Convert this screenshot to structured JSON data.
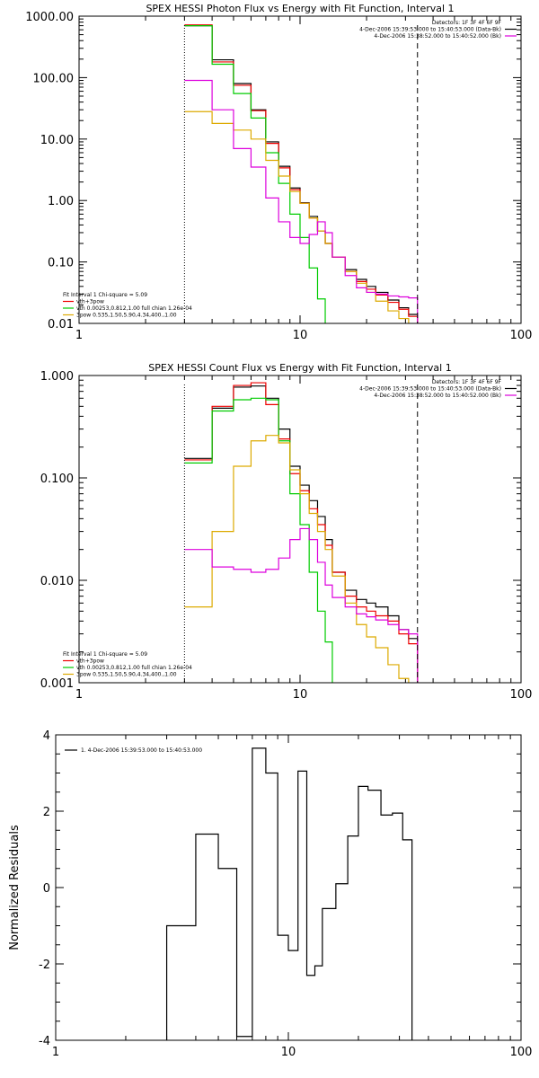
{
  "chart_data": [
    {
      "type": "line",
      "title": "SPEX HESSI Photon Flux vs Energy with Fit Function, Interval 1",
      "xlabel": "",
      "ylabel": "",
      "x_scale": "log",
      "y_scale": "log",
      "xlim": [
        1,
        100
      ],
      "ylim": [
        0.01,
        1000
      ],
      "x_ticks": [
        1,
        10,
        100
      ],
      "x_tick_labels": [
        "1",
        "10",
        "100"
      ],
      "y_ticks": [
        0.01,
        0.1,
        1,
        10,
        100,
        1000
      ],
      "y_tick_labels": [
        "0.01",
        "0.10",
        "1.00",
        "10.00",
        "100.00",
        "1000.00"
      ],
      "header": [
        {
          "text": "Detectors: 1F 3F 4F 6F 9F",
          "color": null
        },
        {
          "text": "4-Dec-2006 15:39:53.000 to 15:40:53.000 (Data-Bk)",
          "color": "#000000"
        },
        {
          "text": "4-Dec-2006 15:38:52.000 to 15:40:52.000 (Bk)",
          "color": "#dd00dd"
        }
      ],
      "legend": [
        {
          "text": "Fit Interval 1    Chi-square = 5.09",
          "color": null
        },
        {
          "text": "vth+3pow",
          "color": "#ee0000"
        },
        {
          "text": "vth 0.00253,0.812,1.00   full chian 1.26e-04",
          "color": "#00cc00"
        },
        {
          "text": "3pow 0.535,1.50,5.90,4.34,400.,1.00",
          "color": "#ddaa00"
        }
      ],
      "markers": [
        {
          "x": 3,
          "style": "dotted"
        },
        {
          "x": 34,
          "style": "dashed"
        }
      ],
      "edges": [
        3,
        4,
        5,
        6,
        7,
        8,
        9,
        10,
        11,
        12,
        13,
        14,
        16,
        18,
        20,
        22,
        25,
        28,
        31,
        34
      ],
      "series": [
        {
          "color": "#000000",
          "values": [
            700,
            195,
            80,
            30,
            9,
            3.6,
            1.6,
            0.92,
            0.55,
            0.32,
            0.2,
            0.12,
            0.075,
            0.052,
            0.04,
            0.032,
            0.024,
            0.018,
            0.014
          ]
        },
        {
          "color": "#ee0000",
          "values": [
            720,
            180,
            75,
            29,
            8.5,
            3.4,
            1.5,
            0.9,
            0.52,
            0.32,
            0.2,
            0.12,
            0.07,
            0.048,
            0.036,
            0.029,
            0.022,
            0.017,
            0.013
          ]
        },
        {
          "color": "#00cc00",
          "values": [
            700,
            165,
            55,
            22,
            6,
            1.9,
            0.6,
            0.25,
            0.08,
            0.025,
            0.009,
            null,
            null,
            null,
            null,
            null,
            null,
            null,
            null
          ]
        },
        {
          "color": "#ddaa00",
          "values": [
            28,
            18,
            14,
            10,
            4.5,
            2.5,
            1.4,
            0.9,
            0.52,
            0.32,
            0.2,
            0.12,
            0.07,
            0.045,
            0.032,
            0.023,
            0.016,
            0.012,
            0.009
          ]
        },
        {
          "color": "#dd00dd",
          "values": [
            90,
            30,
            7,
            3.5,
            1.1,
            0.45,
            0.25,
            0.2,
            0.28,
            0.45,
            0.3,
            0.12,
            0.06,
            0.038,
            0.032,
            0.03,
            0.028,
            0.027,
            0.026
          ]
        }
      ]
    },
    {
      "type": "line",
      "title": "SPEX HESSI Count Flux vs Energy with Fit Function, Interval 1",
      "xlabel": "",
      "ylabel": "",
      "x_scale": "log",
      "y_scale": "log",
      "xlim": [
        1,
        100
      ],
      "ylim": [
        0.001,
        1
      ],
      "x_ticks": [
        1,
        10,
        100
      ],
      "x_tick_labels": [
        "1",
        "10",
        "100"
      ],
      "y_ticks": [
        0.001,
        0.01,
        0.1,
        1
      ],
      "y_tick_labels": [
        "0.001",
        "0.010",
        "0.100",
        "1.000"
      ],
      "header": [
        {
          "text": "Detectors: 1F 3F 4F 6F 9F",
          "color": null
        },
        {
          "text": "4-Dec-2006 15:39:53.000 to 15:40:53.000 (Data-Bk)",
          "color": "#000000"
        },
        {
          "text": "4-Dec-2006 15:38:52.000 to 15:40:52.000 (Bk)",
          "color": "#dd00dd"
        }
      ],
      "legend": [
        {
          "text": "Fit Interval 1    Chi-square = 5.09",
          "color": null
        },
        {
          "text": "vth+3pow",
          "color": "#ee0000"
        },
        {
          "text": "vth 0.00253,0.812,1.00   full chian 1.26e-04",
          "color": "#00cc00"
        },
        {
          "text": "3pow 0.535,1.50,5.90,4.34,400.,1.00",
          "color": "#ddaa00"
        }
      ],
      "markers": [
        {
          "x": 3,
          "style": "dotted"
        },
        {
          "x": 34,
          "style": "dashed"
        }
      ],
      "edges": [
        3,
        4,
        5,
        6,
        7,
        8,
        9,
        10,
        11,
        12,
        13,
        14,
        16,
        18,
        20,
        22,
        25,
        28,
        31,
        34
      ],
      "series": [
        {
          "color": "#000000",
          "values": [
            0.155,
            0.48,
            0.77,
            0.79,
            0.6,
            0.3,
            0.13,
            0.085,
            0.06,
            0.042,
            0.025,
            0.012,
            0.008,
            0.0065,
            0.006,
            0.0055,
            0.0045,
            0.0033,
            0.0027
          ]
        },
        {
          "color": "#ee0000",
          "values": [
            0.15,
            0.5,
            0.8,
            0.85,
            0.52,
            0.24,
            0.11,
            0.075,
            0.05,
            0.035,
            0.022,
            0.012,
            0.007,
            0.0055,
            0.005,
            0.0045,
            0.004,
            0.003,
            0.0024
          ]
        },
        {
          "color": "#00cc00",
          "values": [
            0.14,
            0.45,
            0.58,
            0.6,
            0.58,
            0.23,
            0.07,
            0.035,
            0.012,
            0.005,
            0.0025,
            0.0009,
            null,
            null,
            null,
            null,
            null,
            null,
            null
          ]
        },
        {
          "color": "#ddaa00",
          "values": [
            0.0055,
            0.03,
            0.13,
            0.23,
            0.26,
            0.22,
            0.12,
            0.07,
            0.045,
            0.03,
            0.02,
            0.011,
            0.006,
            0.0037,
            0.0028,
            0.0022,
            0.0015,
            0.0011,
            0.0008
          ]
        },
        {
          "color": "#dd00dd",
          "values": [
            0.02,
            0.0135,
            0.0128,
            0.012,
            0.0128,
            0.0165,
            0.025,
            0.032,
            0.025,
            0.015,
            0.009,
            0.0068,
            0.0055,
            0.0047,
            0.0044,
            0.0041,
            0.0037,
            0.0033,
            0.003
          ]
        }
      ]
    },
    {
      "type": "line",
      "title": "",
      "xlabel": "",
      "ylabel": "Normalized Residuals",
      "x_scale": "log",
      "y_scale": "linear",
      "xlim": [
        1,
        100
      ],
      "ylim": [
        -4,
        4
      ],
      "x_ticks": [
        1,
        10,
        100
      ],
      "x_tick_labels": [
        "1",
        "10",
        "100"
      ],
      "y_ticks": [
        -4,
        -2,
        0,
        2,
        4
      ],
      "y_tick_labels": [
        "-4",
        "-2",
        "0",
        "2",
        "4"
      ],
      "legend": [
        {
          "text": "1.  4-Dec-2006 15:39:53.000 to 15:40:53.000",
          "color": "#000000"
        }
      ],
      "edges": [
        3,
        4,
        5,
        6,
        7,
        8,
        9,
        10,
        11,
        12,
        13,
        14,
        16,
        18,
        20,
        22,
        25,
        28,
        31,
        34
      ],
      "series": [
        {
          "color": "#000000",
          "values": [
            -1.0,
            1.4,
            0.5,
            -3.9,
            3.65,
            3.0,
            -1.25,
            -1.65,
            3.05,
            -2.3,
            -2.05,
            -0.55,
            0.1,
            1.35,
            2.65,
            2.55,
            1.9,
            1.95,
            1.25
          ]
        }
      ]
    }
  ]
}
